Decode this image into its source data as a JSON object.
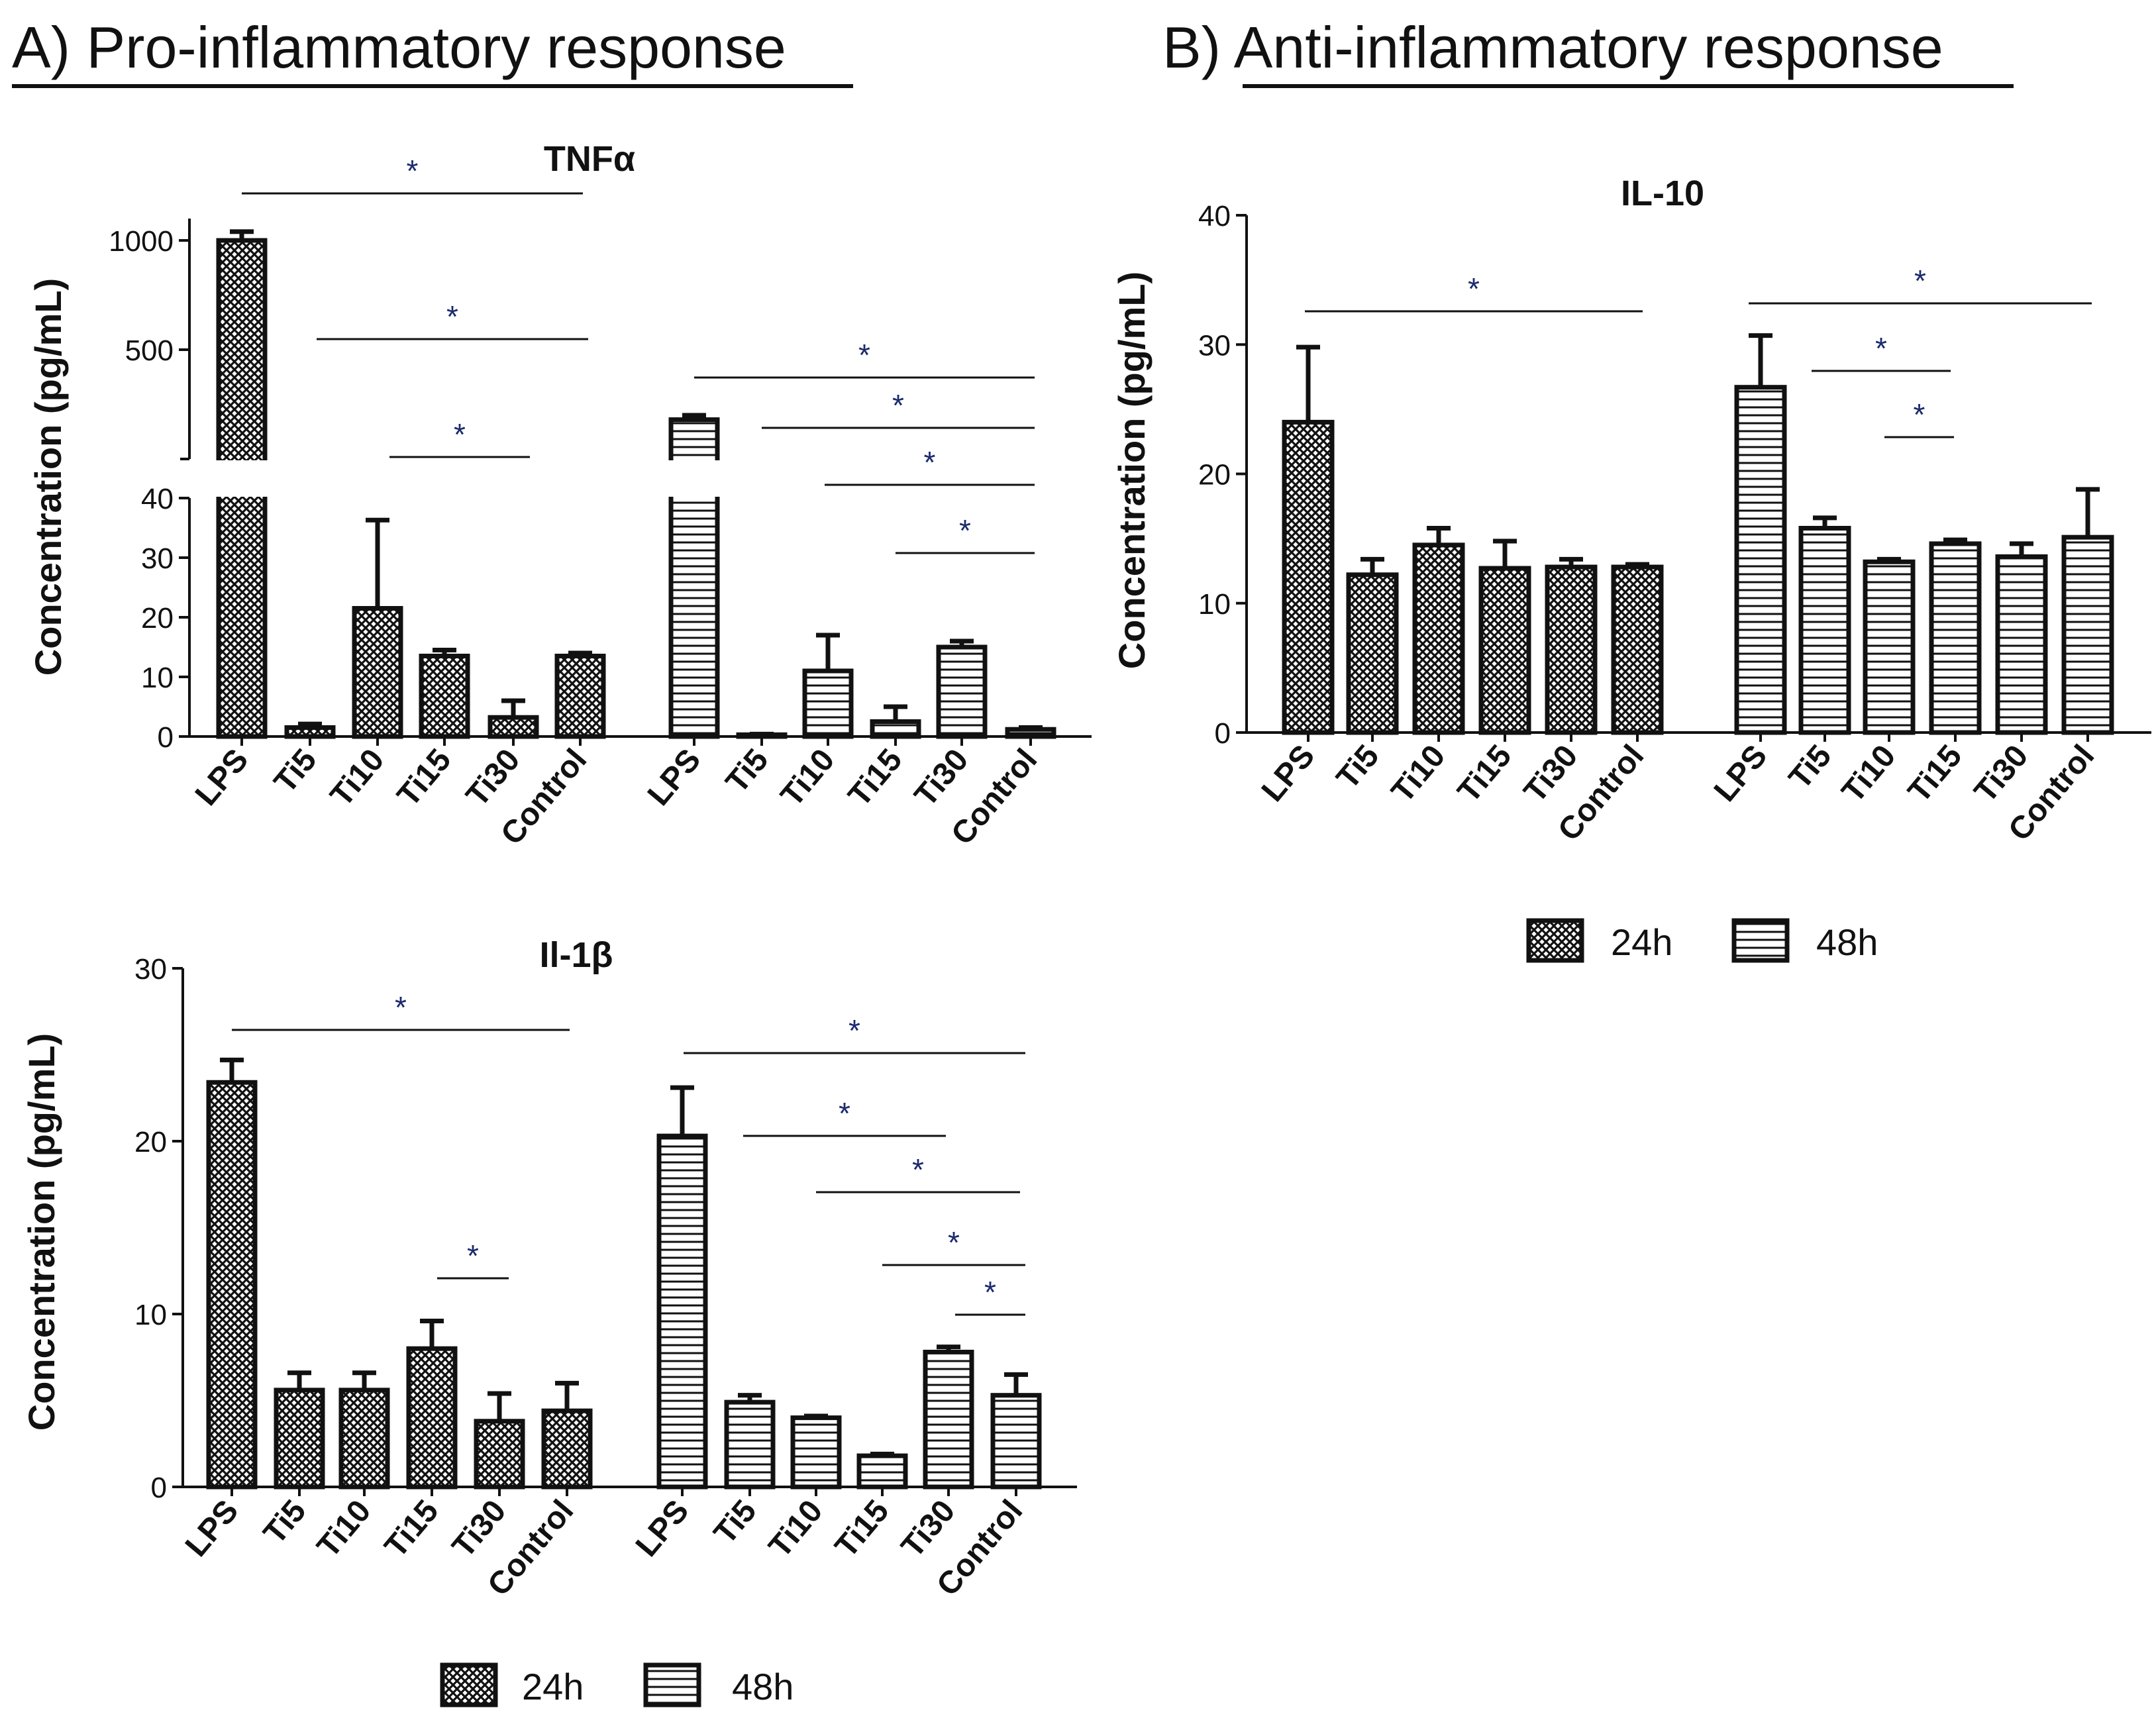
{
  "panels": {
    "a_title": "A) Pro-inflammatory response",
    "b_title": "B) Anti-inflammatory response"
  },
  "legend": {
    "label_24h": "24h",
    "label_48h": "48h"
  },
  "colors": {
    "ink": "#111111",
    "bar_fill": "#ffffff",
    "hatch_24h": "crosshatch",
    "hatch_48h": "horizontal-lines"
  },
  "chart_data": [
    {
      "id": "tnfa",
      "type": "bar",
      "title": "TNFα",
      "ylabel": "Concentration (pg/mL)",
      "xlabel": "",
      "broken_axis": {
        "lower_range": [
          0,
          40
        ],
        "lower_ticks": [
          0,
          10,
          20,
          30,
          40
        ],
        "upper_range": [
          0,
          1100
        ],
        "upper_ticks": [
          500,
          1000
        ]
      },
      "groups": [
        {
          "name": "24h",
          "categories": [
            "LPS",
            "Ti5",
            "Ti10",
            "Ti15",
            "Ti30",
            "Control"
          ],
          "values": [
            1000,
            1.5,
            21.5,
            13.5,
            3.2,
            13.5
          ],
          "errors": [
            40,
            0.6,
            14.8,
            1.0,
            2.8,
            0.5
          ]
        },
        {
          "name": "48h",
          "categories": [
            "LPS",
            "Ti5",
            "Ti10",
            "Ti15",
            "Ti30",
            "Control"
          ],
          "values": [
            180,
            0.3,
            11,
            2.5,
            15,
            1.2
          ],
          "errors": [
            20,
            0.1,
            6,
            2.5,
            1.0,
            0.3
          ]
        }
      ],
      "significance": [
        {
          "label": "*",
          "group": 0,
          "from": "LPS",
          "to": "Control"
        },
        {
          "label": "*",
          "group": 0,
          "from": "Ti5",
          "to": "Control"
        },
        {
          "label": "*",
          "group": 0,
          "from": "Ti10",
          "to": "Ti30"
        },
        {
          "label": "*",
          "group": 1,
          "from": "LPS",
          "to": "Control"
        },
        {
          "label": "*",
          "group": 1,
          "from": "Ti5",
          "to": "Control"
        },
        {
          "label": "*",
          "group": 1,
          "from": "Ti10",
          "to": "Control"
        },
        {
          "label": "*",
          "group": 1,
          "from": "Ti15",
          "to": "Control"
        }
      ]
    },
    {
      "id": "il1b",
      "type": "bar",
      "title": "Il-1β",
      "ylabel": "Concentration (pg/mL)",
      "xlabel": "",
      "ylim": [
        0,
        30
      ],
      "yticks": [
        0,
        10,
        20,
        30
      ],
      "groups": [
        {
          "name": "24h",
          "categories": [
            "LPS",
            "Ti5",
            "Ti10",
            "Ti15",
            "Ti30",
            "Control"
          ],
          "values": [
            23.4,
            5.6,
            5.6,
            8.0,
            3.8,
            4.4
          ],
          "errors": [
            1.3,
            1.0,
            1.0,
            1.6,
            1.6,
            1.6
          ]
        },
        {
          "name": "48h",
          "categories": [
            "LPS",
            "Ti5",
            "Ti10",
            "Ti15",
            "Ti30",
            "Control"
          ],
          "values": [
            20.3,
            4.9,
            4.0,
            1.8,
            7.8,
            5.3
          ],
          "errors": [
            2.8,
            0.4,
            0.1,
            0.1,
            0.3,
            1.2
          ]
        }
      ],
      "significance": [
        {
          "label": "*",
          "group": 0,
          "from": "LPS",
          "to": "Control"
        },
        {
          "label": "*",
          "group": 0,
          "from": "Ti15",
          "to": "Ti30"
        },
        {
          "label": "*",
          "group": 1,
          "from": "LPS",
          "to": "Control"
        },
        {
          "label": "*",
          "group": 1,
          "from": "Ti5",
          "to": "Ti30"
        },
        {
          "label": "*",
          "group": 1,
          "from": "Ti10",
          "to": "Control"
        },
        {
          "label": "*",
          "group": 1,
          "from": "Ti15",
          "to": "Control"
        },
        {
          "label": "*",
          "group": 1,
          "from": "Ti30",
          "to": "Control"
        }
      ]
    },
    {
      "id": "il10",
      "type": "bar",
      "title": "IL-10",
      "ylabel": "Concentration (pg/mL)",
      "xlabel": "",
      "ylim": [
        0,
        40
      ],
      "yticks": [
        0,
        10,
        20,
        30,
        40
      ],
      "groups": [
        {
          "name": "24h",
          "categories": [
            "LPS",
            "Ti5",
            "Ti10",
            "Ti15",
            "Ti30",
            "Control"
          ],
          "values": [
            24.0,
            12.2,
            14.5,
            12.7,
            12.8,
            12.8
          ],
          "errors": [
            5.8,
            1.2,
            1.3,
            2.1,
            0.6,
            0.2
          ]
        },
        {
          "name": "48h",
          "categories": [
            "LPS",
            "Ti5",
            "Ti10",
            "Ti15",
            "Ti30",
            "Control"
          ],
          "values": [
            26.7,
            15.8,
            13.2,
            14.6,
            13.6,
            15.1
          ],
          "errors": [
            4.0,
            0.8,
            0.2,
            0.3,
            1.0,
            3.7
          ]
        }
      ],
      "significance": [
        {
          "label": "*",
          "group": 0,
          "from": "LPS",
          "to": "Control"
        },
        {
          "label": "*",
          "group": 1,
          "from": "LPS",
          "to": "Control"
        },
        {
          "label": "*",
          "group": 1,
          "from": "Ti5",
          "to": "Ti15"
        },
        {
          "label": "*",
          "group": 1,
          "from": "Ti10",
          "to": "Ti15"
        }
      ]
    }
  ]
}
